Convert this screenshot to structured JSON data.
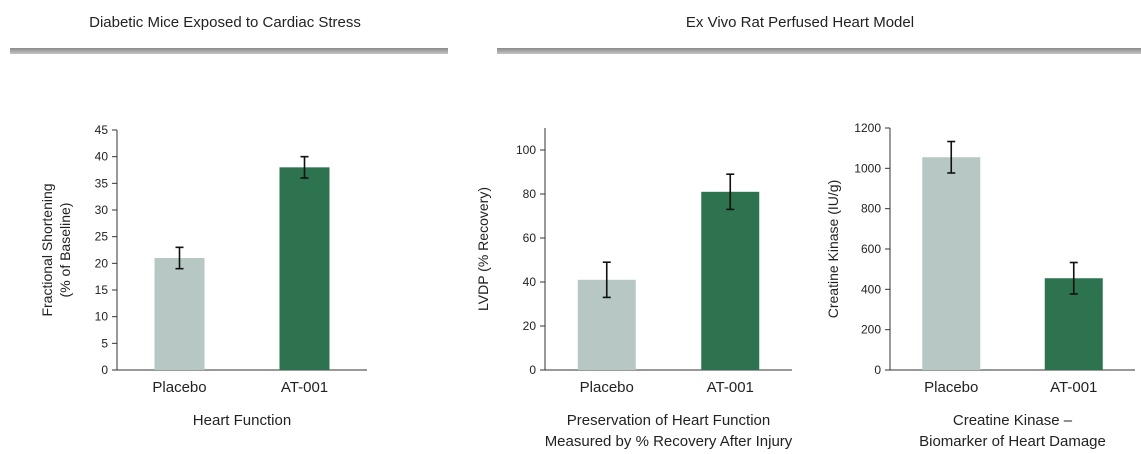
{
  "sections": [
    {
      "title": "Diabetic Mice Exposed to Cardiac Stress"
    },
    {
      "title": "Ex Vivo Rat Perfused Heart Model"
    }
  ],
  "colors": {
    "placebo": "#b6c7c4",
    "treatment": "#2e7350",
    "axis": "#333333",
    "rule": "#999999"
  },
  "chart_data": [
    {
      "type": "bar",
      "categories": [
        "Placebo",
        "AT-001"
      ],
      "values": [
        21,
        38
      ],
      "errors": [
        2,
        2
      ],
      "ylabel": "Fractional Shortening\n(% of Baseline)",
      "xlabel": "Heart Function",
      "ylim": [
        0,
        45
      ],
      "yticks": [
        0,
        5,
        10,
        15,
        20,
        25,
        30,
        35,
        40,
        45
      ]
    },
    {
      "type": "bar",
      "categories": [
        "Placebo",
        "AT-001"
      ],
      "values": [
        41,
        81
      ],
      "errors": [
        8,
        8
      ],
      "ylabel": "LVDP (% Recovery)",
      "xlabel": "Preservation of Heart Function\nMeasured by % Recovery After Injury",
      "ylim": [
        0,
        110
      ],
      "yticks": [
        0,
        20,
        40,
        60,
        80,
        100
      ]
    },
    {
      "type": "bar",
      "categories": [
        "Placebo",
        "AT-001"
      ],
      "values": [
        1055,
        455
      ],
      "errors": [
        78,
        78
      ],
      "ylabel": "Creatine Kinase (IU/g)",
      "xlabel": "Creatine Kinase –\nBiomarker of Heart Damage",
      "ylim": [
        0,
        1200
      ],
      "yticks": [
        0,
        200,
        400,
        600,
        800,
        1000,
        1200
      ]
    }
  ]
}
